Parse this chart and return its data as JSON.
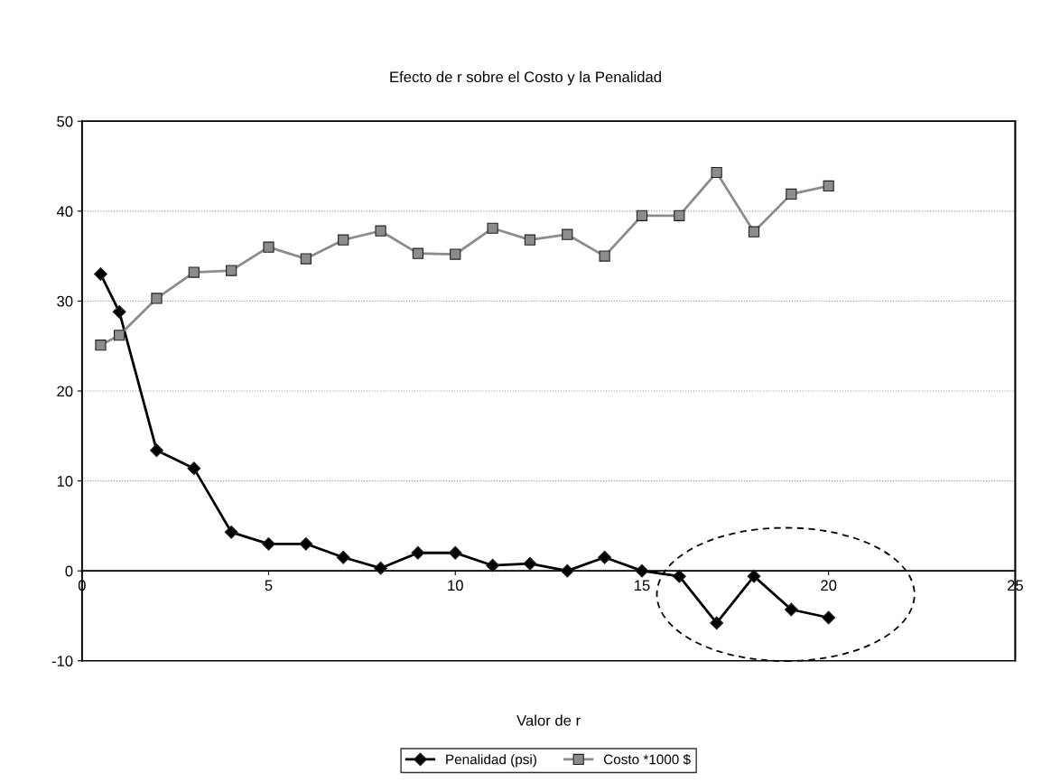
{
  "chart_data": {
    "type": "line",
    "title": "Efecto de r sobre el Costo y la Penalidad",
    "xlabel": "Valor de r",
    "x": [
      0.5,
      1,
      2,
      3,
      4,
      5,
      6,
      7,
      8,
      9,
      10,
      11,
      12,
      13,
      14,
      15,
      16,
      17,
      18,
      19,
      20
    ],
    "series": [
      {
        "name": "Penalidad (psi)",
        "color": "#000000",
        "marker": "diamond",
        "values": [
          33.0,
          28.8,
          13.4,
          11.4,
          4.3,
          3.0,
          3.0,
          1.5,
          0.3,
          2.0,
          2.0,
          0.6,
          0.8,
          0.0,
          1.5,
          0.0,
          -0.6,
          -5.8,
          -0.6,
          -4.3,
          -5.2
        ]
      },
      {
        "name": "Costo *1000 $",
        "color": "#8c8c8c",
        "marker": "square",
        "values": [
          25.1,
          26.2,
          30.3,
          33.2,
          33.4,
          36.0,
          34.7,
          36.8,
          37.8,
          35.3,
          35.2,
          38.1,
          36.8,
          37.4,
          35.0,
          39.5,
          39.5,
          44.3,
          37.7,
          41.9,
          42.8
        ]
      }
    ],
    "xlim": [
      0,
      25
    ],
    "xticks": [
      0,
      5,
      10,
      15,
      20,
      25
    ],
    "ylim": [
      -10,
      50
    ],
    "yticks": [
      -10,
      0,
      10,
      20,
      30,
      40,
      50
    ],
    "grid": "y",
    "legend": "bottom",
    "line_style": "solid"
  }
}
